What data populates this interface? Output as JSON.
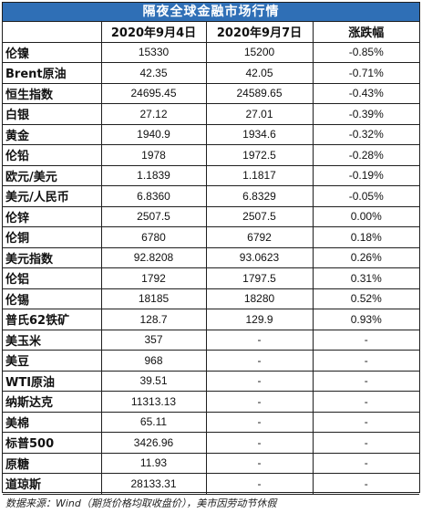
{
  "title": "隔夜全球金融市场行情",
  "headers": [
    "",
    "2020年9月4日",
    "2020年9月7日",
    "涨跌幅"
  ],
  "rows": [
    {
      "name": "伦镍",
      "d1": "15330",
      "d2": "15200",
      "chg": "-0.85%"
    },
    {
      "name": "Brent原油",
      "d1": "42.35",
      "d2": "42.05",
      "chg": "-0.71%"
    },
    {
      "name": "恒生指数",
      "d1": "24695.45",
      "d2": "24589.65",
      "chg": "-0.43%"
    },
    {
      "name": "白银",
      "d1": "27.12",
      "d2": "27.01",
      "chg": "-0.39%"
    },
    {
      "name": "黄金",
      "d1": "1940.9",
      "d2": "1934.6",
      "chg": "-0.32%"
    },
    {
      "name": "伦铅",
      "d1": "1978",
      "d2": "1972.5",
      "chg": "-0.28%"
    },
    {
      "name": "欧元/美元",
      "d1": "1.1839",
      "d2": "1.1817",
      "chg": "-0.19%"
    },
    {
      "name": "美元/人民币",
      "d1": "6.8360",
      "d2": "6.8329",
      "chg": "-0.05%"
    },
    {
      "name": "伦锌",
      "d1": "2507.5",
      "d2": "2507.5",
      "chg": "0.00%"
    },
    {
      "name": "伦铜",
      "d1": "6780",
      "d2": "6792",
      "chg": "0.18%"
    },
    {
      "name": "美元指数",
      "d1": "92.8208",
      "d2": "93.0623",
      "chg": "0.26%"
    },
    {
      "name": "伦铝",
      "d1": "1792",
      "d2": "1797.5",
      "chg": "0.31%"
    },
    {
      "name": "伦锡",
      "d1": "18185",
      "d2": "18280",
      "chg": "0.52%"
    },
    {
      "name": "普氏62铁矿",
      "d1": "128.7",
      "d2": "129.9",
      "chg": "0.93%"
    },
    {
      "name": "美玉米",
      "d1": "357",
      "d2": "-",
      "chg": "-"
    },
    {
      "name": "美豆",
      "d1": "968",
      "d2": "-",
      "chg": "-"
    },
    {
      "name": "WTI原油",
      "d1": "39.51",
      "d2": "-",
      "chg": "-"
    },
    {
      "name": "纳斯达克",
      "d1": "11313.13",
      "d2": "-",
      "chg": "-"
    },
    {
      "name": "美棉",
      "d1": "65.11",
      "d2": "-",
      "chg": "-"
    },
    {
      "name": "标普500",
      "d1": "3426.96",
      "d2": "-",
      "chg": "-"
    },
    {
      "name": "原糖",
      "d1": "11.93",
      "d2": "-",
      "chg": "-"
    },
    {
      "name": "道琼斯",
      "d1": "28133.31",
      "d2": "-",
      "chg": "-"
    }
  ],
  "footer": "数据来源：Wind（期货价格均取收盘价），美市因劳动节休假",
  "colors": {
    "title_bg": "#2f6fb6",
    "title_text": "#ffffff",
    "border": "#1f1f1f"
  }
}
